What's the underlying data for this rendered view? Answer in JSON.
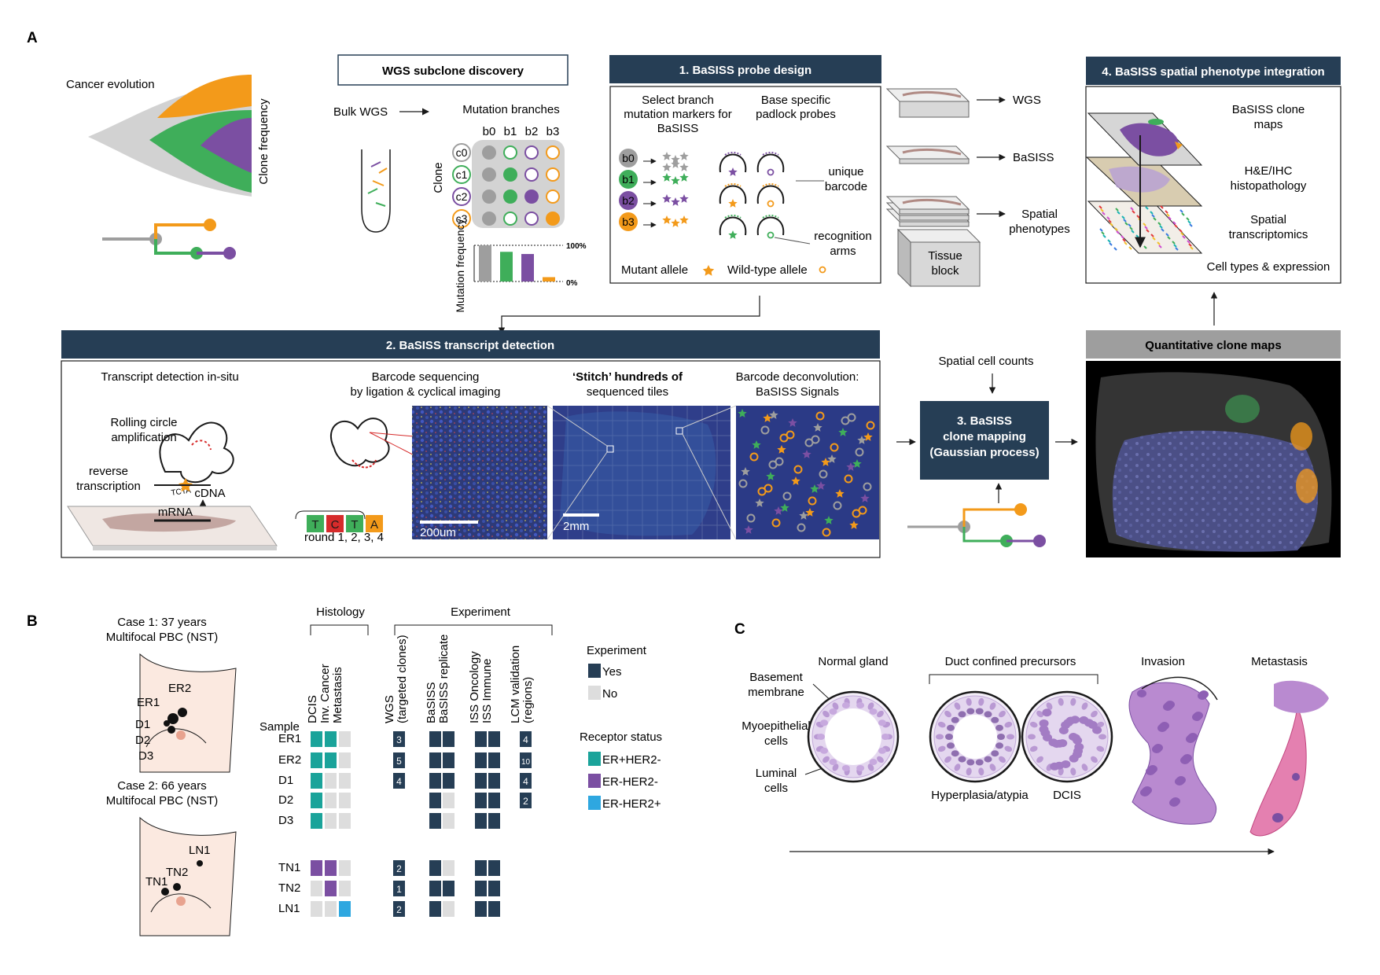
{
  "colors": {
    "navy": "#263e55",
    "gray": "#9e9e9e",
    "green": "#3fae5a",
    "orange": "#f39a1a",
    "purple": "#7b4fa2",
    "teal": "#1aa39a",
    "light": "#dddddd",
    "blue_her2": "#2ea7e0",
    "tissue_bg": "#1f2a57",
    "skin": "#fbe9e0"
  },
  "panelA": {
    "label": "A",
    "cancer_evolution": "Cancer evolution",
    "clone_frequency": "Clone frequency",
    "wgs_title": "WGS subclone discovery",
    "bulk_wgs": "Bulk WGS",
    "mutation_branches": "Mutation branches",
    "branches": [
      "b0",
      "b1",
      "b2",
      "b3"
    ],
    "clone_label": "Clone",
    "clones": [
      "c0",
      "c1",
      "c2",
      "c3"
    ],
    "clone_matrix": [
      [
        1,
        0,
        0,
        0
      ],
      [
        1,
        1,
        0,
        0
      ],
      [
        1,
        1,
        1,
        0
      ],
      [
        1,
        0,
        0,
        1
      ]
    ],
    "mutation_frequency": "Mutation frequency",
    "mutation_frequency_values": [
      100,
      82,
      76,
      12
    ],
    "pct_100": "100%",
    "pct_0": "0%",
    "probe_title": "1. BaSISS probe design",
    "select_branch": "Select  branch\nmutation markers for\nBaSISS",
    "base_specific": "Base specific\npadlock probes",
    "unique_barcode": "unique\nbarcode",
    "recognition_arms": "recognition\narms",
    "mutant_allele": "Mutant allele",
    "wildtype_allele": "Wild-type allele",
    "probe_branches": [
      "b0",
      "b1",
      "b2",
      "b3"
    ],
    "slides": [
      "WGS",
      "BaSISS",
      "Spatial\nphenotypes",
      "Tissue\nblock"
    ],
    "integration_title": "4. BaSISS spatial phenotype integration",
    "layers": [
      "BaSISS clone\nmaps",
      "H&E/IHC\nhistopathology",
      "Spatial\ntranscriptomics",
      "Cell types & expression"
    ],
    "detection_title": "2. BaSISS transcript detection",
    "transcript_insitu": "Transcript detection in-situ",
    "rolling_circle": "Rolling circle\namplification",
    "reverse_transcription": "reverse\ntranscription",
    "cdna": "cDNA",
    "mrna": "mRNA",
    "tcta": "TCTA",
    "barcode_seq": "Barcode sequencing\nby ligation & cyclical imaging",
    "rounds_letters": [
      "T",
      "C",
      "T",
      "A"
    ],
    "round_label": "round 1,  2,  3,  4",
    "scale_200": "200um",
    "stitch_bold": "‘Stitch’ hundreds of",
    "stitch_rest": "sequenced tiles",
    "scale_2mm": "2mm",
    "deconv": "Barcode deconvolution:\nBaSISS Signals",
    "spatial_cell_counts": "Spatial cell counts",
    "mapping_title": "3. BaSISS\nclone mapping\n(Gaussian process)",
    "quant_title": "Quantitative clone maps"
  },
  "panelB": {
    "label": "B",
    "case1": "Case 1: 37 years\nMultifocal PBC (NST)",
    "case2": "Case 2: 66 years\nMultifocal PBC (NST)",
    "case1_sites": [
      "ER1",
      "ER2",
      "D1",
      "D2",
      "D3"
    ],
    "case2_sites": [
      "LN1",
      "TN2",
      "TN1"
    ],
    "histology": "Histology",
    "experiment": "Experiment",
    "sample": "Sample",
    "hist_cols": [
      "DCIS",
      "Inv. Cancer",
      "Metastasis"
    ],
    "exp_cols": [
      "WGS\n(targeted clones)",
      "BaSISS",
      "BaSISS replicate",
      "ISS Oncology",
      "ISS Immune",
      "LCM validation\n(regions)"
    ],
    "rows": [
      {
        "sample": "ER1",
        "hist": [
          "t",
          "t",
          "n"
        ],
        "wgs": "3",
        "exp": [
          1,
          1,
          1,
          1
        ],
        "lcm": "4"
      },
      {
        "sample": "ER2",
        "hist": [
          "t",
          "t",
          "n"
        ],
        "wgs": "5",
        "exp": [
          1,
          1,
          1,
          1
        ],
        "lcm": "10"
      },
      {
        "sample": "D1",
        "hist": [
          "t",
          "n",
          "n"
        ],
        "wgs": "4",
        "exp": [
          1,
          1,
          1,
          1
        ],
        "lcm": "4"
      },
      {
        "sample": "D2",
        "hist": [
          "t",
          "n",
          "n"
        ],
        "wgs": "",
        "exp": [
          1,
          0,
          1,
          1
        ],
        "lcm": "2"
      },
      {
        "sample": "D3",
        "hist": [
          "t",
          "n",
          "n"
        ],
        "wgs": "",
        "exp": [
          1,
          0,
          1,
          1
        ],
        "lcm": ""
      },
      {
        "sample": "TN1",
        "hist": [
          "p",
          "p",
          "n"
        ],
        "wgs": "2",
        "exp": [
          1,
          0,
          1,
          1
        ],
        "lcm": ""
      },
      {
        "sample": "TN2",
        "hist": [
          "n",
          "p",
          "n"
        ],
        "wgs": "1",
        "exp": [
          1,
          1,
          1,
          1
        ],
        "lcm": ""
      },
      {
        "sample": "LN1",
        "hist": [
          "n",
          "n",
          "b"
        ],
        "wgs": "2",
        "exp": [
          1,
          0,
          1,
          1
        ],
        "lcm": ""
      }
    ],
    "legend_experiment": "Experiment",
    "yes": "Yes",
    "no": "No",
    "receptor_status": "Receptor status",
    "receptors": [
      "ER+HER2-",
      "ER-HER2-",
      "ER-HER2+"
    ]
  },
  "panelC": {
    "label": "C",
    "normal_gland": "Normal gland",
    "duct_confined": "Duct confined precursors",
    "invasion": "Invasion",
    "metastasis": "Metastasis",
    "basement": "Basement\nmembrane",
    "myoepithelial": "Myoepithelial\ncells",
    "luminal": "Luminal\ncells",
    "hyperplasia": "Hyperplasia/atypia",
    "dcis": "DCIS"
  }
}
